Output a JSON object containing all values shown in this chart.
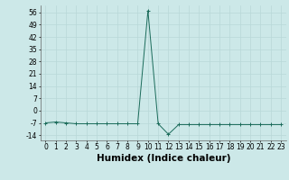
{
  "x": [
    0,
    1,
    2,
    3,
    4,
    5,
    6,
    7,
    8,
    9,
    10,
    11,
    12,
    13,
    14,
    15,
    16,
    17,
    18,
    19,
    20,
    21,
    22,
    23
  ],
  "y": [
    -7,
    -6.5,
    -7,
    -7.5,
    -7.5,
    -7.5,
    -7.5,
    -7.5,
    -7.5,
    -7.5,
    57,
    -7.5,
    -13.5,
    -8,
    -8,
    -8,
    -8,
    -8,
    -8,
    -8,
    -8,
    -8,
    -8,
    -8
  ],
  "yticks": [
    -14,
    -7,
    0,
    7,
    14,
    21,
    28,
    35,
    42,
    49,
    56
  ],
  "xticks": [
    0,
    1,
    2,
    3,
    4,
    5,
    6,
    7,
    8,
    9,
    10,
    11,
    12,
    13,
    14,
    15,
    16,
    17,
    18,
    19,
    20,
    21,
    22,
    23
  ],
  "xlabel": "Humidex (Indice chaleur)",
  "xlim": [
    -0.5,
    23.5
  ],
  "ylim": [
    -17,
    60
  ],
  "line_color": "#1a6b5a",
  "marker": "+",
  "marker_size": 3,
  "bg_color": "#cce8e8",
  "grid_color": "#b8d8d8",
  "tick_label_fontsize": 5.5,
  "xlabel_fontsize": 7.5
}
